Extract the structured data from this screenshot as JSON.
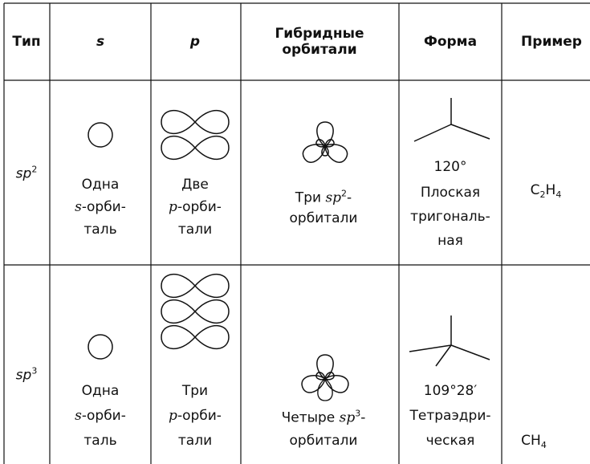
{
  "table": {
    "header": [
      "Тип",
      "s",
      "p",
      "Гибридные орбитали",
      "Форма",
      "Пример"
    ],
    "rows": [
      {
        "type": [
          "sp",
          "2"
        ],
        "s": [
          [
            "Одна"
          ],
          [
            "s",
            "-орби-"
          ],
          [
            "таль"
          ]
        ],
        "p": [
          [
            "Две"
          ],
          [
            "p",
            "-орби-"
          ],
          [
            "тали"
          ]
        ],
        "hybrid": [
          [
            "Три ",
            "sp",
            "2",
            "-"
          ],
          [
            "орбитали"
          ]
        ],
        "shape": [
          "120°",
          "Плоская",
          "тригональ-",
          "ная"
        ],
        "example": [
          "C",
          "2",
          "H",
          "4"
        ]
      },
      {
        "type": [
          "sp",
          "3"
        ],
        "s": [
          [
            "Одна"
          ],
          [
            "s",
            "-орби-"
          ],
          [
            "таль"
          ]
        ],
        "p": [
          [
            "Три"
          ],
          [
            "p",
            "-орби-"
          ],
          [
            "тали"
          ]
        ],
        "hybrid": [
          [
            "Четыре ",
            "sp",
            "3",
            "-"
          ],
          [
            "орбитали"
          ]
        ],
        "shape": [
          "109°28′",
          "Тетраэдри-",
          "ческая"
        ],
        "example": [
          "CH",
          "4"
        ]
      }
    ]
  }
}
